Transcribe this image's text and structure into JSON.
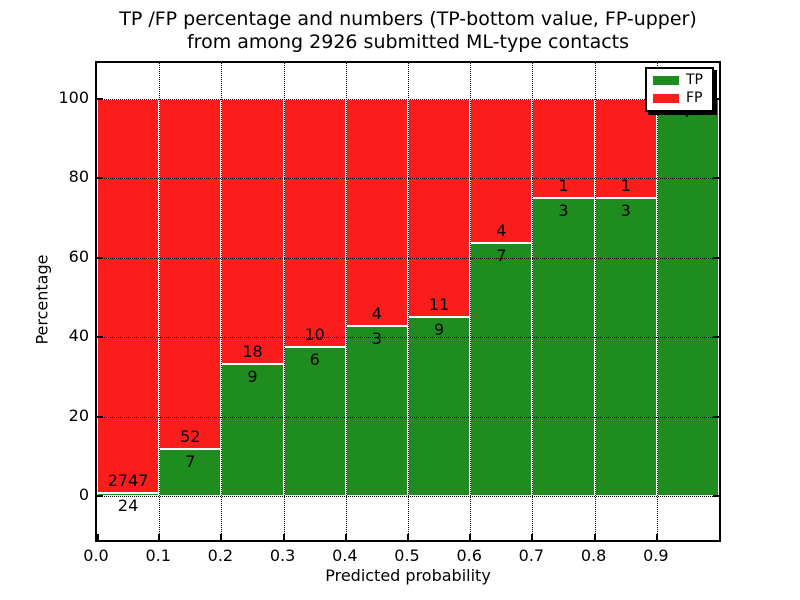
{
  "title": {
    "line1": "TP /FP percentage and numbers (TP-bottom value, FP-upper)",
    "line2": "from among 2926 submitted ML-type contacts"
  },
  "axes": {
    "xlabel": "Predicted probability",
    "ylabel": "Percentage",
    "x_tick_labels": [
      "0.0",
      "0.1",
      "0.2",
      "0.3",
      "0.4",
      "0.5",
      "0.6",
      "0.7",
      "0.8",
      "0.9"
    ],
    "y_tick_labels": [
      "0",
      "20",
      "40",
      "60",
      "80",
      "100"
    ],
    "y_tick_values": [
      0,
      20,
      40,
      60,
      80,
      100
    ]
  },
  "legend": {
    "items": [
      {
        "label": "TP",
        "color": "#1e8c1e"
      },
      {
        "label": "FP",
        "color": "#fb1c1c"
      }
    ]
  },
  "chart_data": {
    "type": "bar",
    "variant": "stacked-percentage",
    "title": "TP /FP percentage and numbers (TP-bottom value, FP-upper) from among 2926 submitted ML-type contacts",
    "xlabel": "Predicted probability",
    "ylabel": "Percentage",
    "xlim": [
      0.0,
      1.0
    ],
    "ylim": [
      0,
      100
    ],
    "bin_width": 0.1,
    "grid": true,
    "legend_position": "upper right",
    "total_contacts": 2926,
    "categories": [
      "0.0-0.1",
      "0.1-0.2",
      "0.2-0.3",
      "0.3-0.4",
      "0.4-0.5",
      "0.5-0.6",
      "0.6-0.7",
      "0.7-0.8",
      "0.8-0.9",
      "0.9-1.0"
    ],
    "series": [
      {
        "name": "TP",
        "color": "#1e8c1e",
        "values": [
          24,
          7,
          9,
          6,
          3,
          9,
          7,
          3,
          3,
          7
        ]
      },
      {
        "name": "FP",
        "color": "#fb1c1c",
        "values": [
          2747,
          52,
          18,
          10,
          4,
          11,
          4,
          1,
          1,
          0
        ]
      }
    ],
    "tp_percent_of_bin": [
      0.87,
      11.86,
      33.33,
      37.5,
      42.86,
      45.0,
      63.64,
      75.0,
      75.0,
      100.0
    ]
  }
}
